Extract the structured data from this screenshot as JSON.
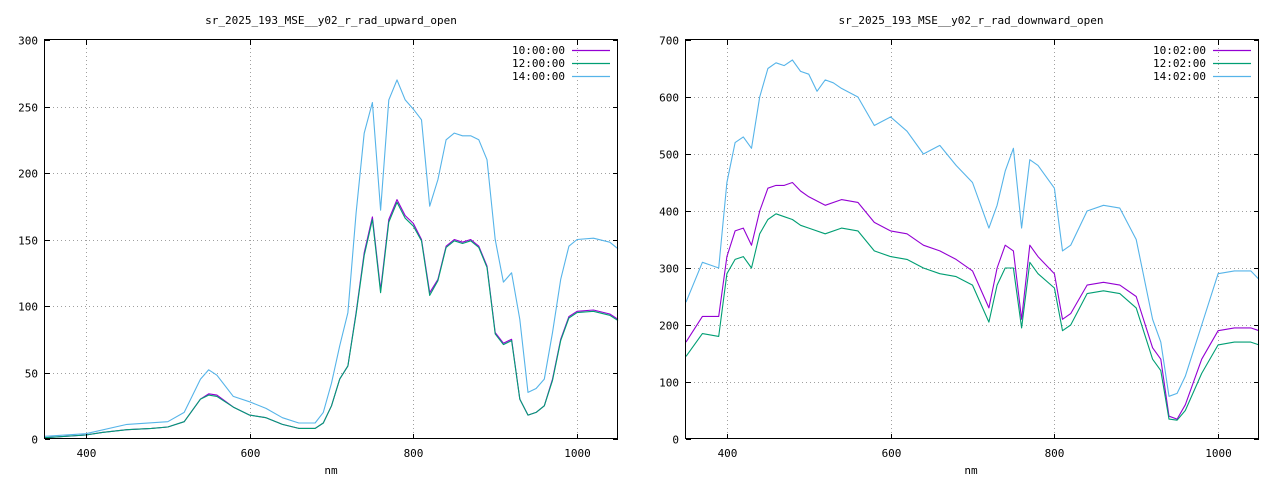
{
  "chart_data": [
    {
      "type": "line",
      "title": "sr_2025_193_MSE__y02_r_rad_upward_open",
      "xlabel": "nm",
      "ylabel": "",
      "xlim": [
        350,
        1050
      ],
      "ylim": [
        0,
        300
      ],
      "xticks": [
        400,
        600,
        800,
        1000
      ],
      "yticks": [
        0,
        50,
        100,
        150,
        200,
        250,
        300
      ],
      "grid": true,
      "legend_position": "top-right",
      "series": [
        {
          "name": "10:00:00",
          "color": "#9400d3",
          "x": [
            350,
            400,
            420,
            450,
            480,
            500,
            520,
            540,
            550,
            560,
            580,
            600,
            620,
            640,
            660,
            680,
            690,
            700,
            710,
            720,
            730,
            740,
            750,
            760,
            770,
            780,
            790,
            800,
            810,
            820,
            830,
            840,
            850,
            860,
            870,
            880,
            890,
            900,
            910,
            920,
            930,
            940,
            950,
            960,
            970,
            980,
            990,
            1000,
            1020,
            1040,
            1050
          ],
          "y": [
            1,
            3,
            5,
            7,
            8,
            9,
            13,
            30,
            34,
            33,
            24,
            18,
            16,
            11,
            8,
            8,
            12,
            25,
            45,
            55,
            95,
            140,
            167,
            112,
            165,
            180,
            168,
            162,
            150,
            110,
            120,
            145,
            150,
            148,
            150,
            145,
            130,
            80,
            72,
            75,
            30,
            18,
            20,
            25,
            45,
            75,
            92,
            96,
            97,
            94,
            90
          ]
        },
        {
          "name": "12:00:00",
          "color": "#009e73",
          "x": [
            350,
            400,
            420,
            450,
            480,
            500,
            520,
            540,
            550,
            560,
            580,
            600,
            620,
            640,
            660,
            680,
            690,
            700,
            710,
            720,
            730,
            740,
            750,
            760,
            770,
            780,
            790,
            800,
            810,
            820,
            830,
            840,
            850,
            860,
            870,
            880,
            890,
            900,
            910,
            920,
            930,
            940,
            950,
            960,
            970,
            980,
            990,
            1000,
            1020,
            1040,
            1050
          ],
          "y": [
            1,
            3,
            5,
            7,
            8,
            9,
            13,
            30,
            33,
            32,
            24,
            18,
            16,
            11,
            8,
            8,
            12,
            25,
            45,
            55,
            94,
            138,
            165,
            110,
            163,
            178,
            166,
            160,
            149,
            108,
            119,
            144,
            149,
            147,
            149,
            144,
            129,
            79,
            71,
            74,
            30,
            18,
            20,
            25,
            44,
            74,
            91,
            95,
            96,
            93,
            89
          ]
        },
        {
          "name": "14:00:00",
          "color": "#56b4e9",
          "x": [
            350,
            400,
            450,
            500,
            520,
            540,
            550,
            560,
            580,
            600,
            620,
            640,
            660,
            680,
            690,
            700,
            710,
            720,
            730,
            740,
            750,
            760,
            770,
            780,
            790,
            800,
            810,
            820,
            830,
            840,
            850,
            860,
            870,
            880,
            890,
            900,
            910,
            920,
            930,
            940,
            950,
            960,
            970,
            980,
            990,
            1000,
            1020,
            1040,
            1050
          ],
          "y": [
            2,
            4,
            11,
            13,
            20,
            45,
            52,
            48,
            32,
            28,
            23,
            16,
            12,
            12,
            20,
            42,
            70,
            95,
            170,
            230,
            253,
            172,
            255,
            270,
            255,
            248,
            240,
            175,
            195,
            225,
            230,
            228,
            228,
            225,
            210,
            150,
            118,
            125,
            90,
            35,
            38,
            45,
            80,
            120,
            145,
            150,
            151,
            148,
            143
          ]
        }
      ]
    },
    {
      "type": "line",
      "title": "sr_2025_193_MSE__y02_r_rad_downward_open",
      "xlabel": "nm",
      "ylabel": "",
      "xlim": [
        350,
        1050
      ],
      "ylim": [
        0,
        700
      ],
      "xticks": [
        400,
        600,
        800,
        1000
      ],
      "yticks": [
        0,
        100,
        200,
        300,
        400,
        500,
        600,
        700
      ],
      "grid": true,
      "legend_position": "top-right",
      "series": [
        {
          "name": "10:02:00",
          "color": "#9400d3",
          "x": [
            350,
            370,
            390,
            400,
            410,
            420,
            430,
            440,
            450,
            460,
            470,
            480,
            490,
            500,
            520,
            540,
            560,
            580,
            600,
            620,
            640,
            660,
            680,
            700,
            720,
            730,
            740,
            750,
            760,
            770,
            780,
            800,
            810,
            820,
            840,
            860,
            880,
            900,
            920,
            930,
            940,
            950,
            960,
            980,
            1000,
            1020,
            1040,
            1050
          ],
          "y": [
            170,
            215,
            215,
            320,
            365,
            370,
            340,
            400,
            440,
            445,
            445,
            450,
            435,
            425,
            410,
            420,
            415,
            380,
            365,
            360,
            340,
            330,
            315,
            295,
            230,
            300,
            340,
            330,
            210,
            340,
            320,
            290,
            210,
            220,
            270,
            275,
            270,
            250,
            160,
            140,
            40,
            35,
            60,
            140,
            190,
            195,
            195,
            190
          ]
        },
        {
          "name": "12:02:00",
          "color": "#009e73",
          "x": [
            350,
            370,
            390,
            400,
            410,
            420,
            430,
            440,
            450,
            460,
            470,
            480,
            490,
            500,
            520,
            540,
            560,
            580,
            600,
            620,
            640,
            660,
            680,
            700,
            720,
            730,
            740,
            750,
            760,
            770,
            780,
            800,
            810,
            820,
            840,
            860,
            880,
            900,
            920,
            930,
            940,
            950,
            960,
            980,
            1000,
            1020,
            1040,
            1050
          ],
          "y": [
            145,
            185,
            180,
            290,
            315,
            320,
            300,
            360,
            385,
            395,
            390,
            385,
            375,
            370,
            360,
            370,
            365,
            330,
            320,
            315,
            300,
            290,
            285,
            270,
            205,
            270,
            300,
            300,
            195,
            310,
            290,
            265,
            190,
            200,
            255,
            260,
            255,
            230,
            140,
            120,
            35,
            33,
            50,
            115,
            165,
            170,
            170,
            165
          ]
        },
        {
          "name": "14:02:00",
          "color": "#56b4e9",
          "x": [
            350,
            370,
            380,
            390,
            400,
            410,
            420,
            430,
            440,
            450,
            460,
            470,
            480,
            490,
            500,
            510,
            520,
            530,
            540,
            560,
            580,
            600,
            620,
            640,
            660,
            680,
            700,
            720,
            730,
            740,
            750,
            760,
            770,
            780,
            800,
            810,
            820,
            840,
            860,
            880,
            900,
            920,
            930,
            940,
            950,
            960,
            980,
            1000,
            1020,
            1040,
            1050
          ],
          "y": [
            240,
            310,
            305,
            300,
            450,
            520,
            530,
            510,
            600,
            650,
            660,
            655,
            665,
            645,
            640,
            610,
            630,
            625,
            615,
            600,
            550,
            565,
            540,
            500,
            515,
            480,
            450,
            370,
            410,
            470,
            510,
            370,
            490,
            480,
            440,
            330,
            340,
            400,
            410,
            405,
            350,
            210,
            170,
            75,
            80,
            110,
            200,
            290,
            295,
            295,
            280
          ]
        }
      ]
    }
  ]
}
